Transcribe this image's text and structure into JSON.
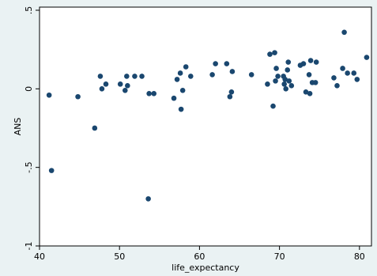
{
  "chart_data": {
    "type": "scatter",
    "xlabel": "life_expectancy",
    "ylabel": "ANS",
    "xlim": [
      40,
      81.5
    ],
    "ylim": [
      -1,
      0.52
    ],
    "xticks": [
      40,
      50,
      60,
      70,
      80
    ],
    "yticks": [
      -1,
      -0.5,
      0,
      0.5
    ],
    "xtick_labels": [
      "40",
      "50",
      "60",
      "70",
      "80"
    ],
    "ytick_labels": [
      "-1",
      "-.5",
      "0",
      ".5"
    ],
    "grid": false,
    "legend": "none",
    "colors": {
      "marker": "#1a476f",
      "plot_bg": "#ffffff",
      "outer_bg": "#eaf2f3"
    },
    "points": [
      {
        "x": 41.2,
        "y": -0.04
      },
      {
        "x": 41.5,
        "y": -0.52
      },
      {
        "x": 44.8,
        "y": -0.05
      },
      {
        "x": 46.9,
        "y": -0.25
      },
      {
        "x": 47.6,
        "y": 0.08
      },
      {
        "x": 47.8,
        "y": 0.0
      },
      {
        "x": 48.3,
        "y": 0.03
      },
      {
        "x": 50.1,
        "y": 0.03
      },
      {
        "x": 50.7,
        "y": -0.01
      },
      {
        "x": 50.9,
        "y": 0.08
      },
      {
        "x": 51.0,
        "y": 0.02
      },
      {
        "x": 51.9,
        "y": 0.08
      },
      {
        "x": 52.8,
        "y": 0.08
      },
      {
        "x": 53.6,
        "y": -0.7
      },
      {
        "x": 53.7,
        "y": -0.03
      },
      {
        "x": 54.3,
        "y": -0.03
      },
      {
        "x": 56.8,
        "y": -0.06
      },
      {
        "x": 57.2,
        "y": 0.06
      },
      {
        "x": 57.6,
        "y": 0.1
      },
      {
        "x": 57.7,
        "y": -0.13
      },
      {
        "x": 57.9,
        "y": -0.01
      },
      {
        "x": 58.3,
        "y": 0.14
      },
      {
        "x": 58.9,
        "y": 0.08
      },
      {
        "x": 61.6,
        "y": 0.09
      },
      {
        "x": 62.0,
        "y": 0.16
      },
      {
        "x": 63.4,
        "y": 0.16
      },
      {
        "x": 63.8,
        "y": -0.05
      },
      {
        "x": 64.0,
        "y": -0.02
      },
      {
        "x": 64.1,
        "y": 0.11
      },
      {
        "x": 66.5,
        "y": 0.09
      },
      {
        "x": 68.5,
        "y": 0.03
      },
      {
        "x": 68.8,
        "y": 0.22
      },
      {
        "x": 69.2,
        "y": -0.11
      },
      {
        "x": 69.4,
        "y": 0.23
      },
      {
        "x": 69.5,
        "y": 0.05
      },
      {
        "x": 69.6,
        "y": 0.13
      },
      {
        "x": 69.8,
        "y": 0.08
      },
      {
        "x": 70.5,
        "y": 0.08
      },
      {
        "x": 70.6,
        "y": 0.03
      },
      {
        "x": 70.7,
        "y": 0.06
      },
      {
        "x": 70.8,
        "y": 0.0
      },
      {
        "x": 71.0,
        "y": 0.12
      },
      {
        "x": 71.1,
        "y": 0.17
      },
      {
        "x": 71.2,
        "y": 0.05
      },
      {
        "x": 71.5,
        "y": 0.02
      },
      {
        "x": 72.6,
        "y": 0.15
      },
      {
        "x": 73.0,
        "y": 0.16
      },
      {
        "x": 73.3,
        "y": -0.02
      },
      {
        "x": 73.7,
        "y": 0.09
      },
      {
        "x": 73.8,
        "y": -0.03
      },
      {
        "x": 73.9,
        "y": 0.18
      },
      {
        "x": 74.1,
        "y": 0.04
      },
      {
        "x": 74.5,
        "y": 0.04
      },
      {
        "x": 74.6,
        "y": 0.17
      },
      {
        "x": 76.8,
        "y": 0.07
      },
      {
        "x": 77.2,
        "y": 0.02
      },
      {
        "x": 77.9,
        "y": 0.13
      },
      {
        "x": 78.1,
        "y": 0.36
      },
      {
        "x": 78.5,
        "y": 0.1
      },
      {
        "x": 79.3,
        "y": 0.1
      },
      {
        "x": 79.7,
        "y": 0.06
      },
      {
        "x": 80.9,
        "y": 0.2
      }
    ]
  }
}
